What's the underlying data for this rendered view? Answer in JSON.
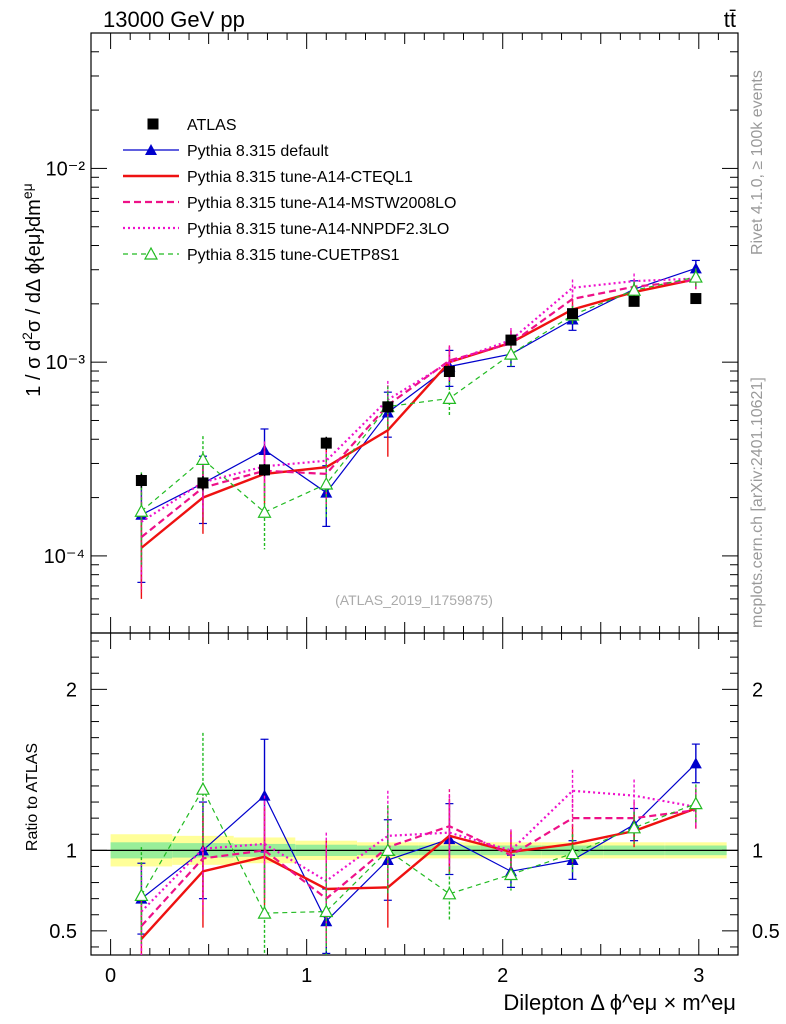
{
  "header": {
    "energy_label": "13000 GeV pp",
    "process_label": "tt̄"
  },
  "side": {
    "rivet_label": "Rivet 4.1.0, ≥ 100k events",
    "mcplots_label": "mcplots.cern.ch [arXiv:2401.10621]"
  },
  "watermark": "(ATLAS_2019_I1759875)",
  "chart_data": [
    {
      "type": "scatter",
      "panel": "main",
      "ylabel": "1 / σ  d²σ / dΔ ϕ{eμ}dm^eμ",
      "yscale": "log",
      "ylim": [
        4e-05,
        0.05
      ],
      "xlim": [
        -0.1,
        3.2
      ],
      "ytick_labels": [
        "10⁻⁴",
        "10⁻³",
        "10⁻²"
      ],
      "x": [
        0.157,
        0.471,
        0.785,
        1.1,
        1.414,
        1.728,
        2.042,
        2.356,
        2.67,
        2.985
      ],
      "series": [
        {
          "name": "ATLAS",
          "color": "#000000",
          "style": "data",
          "values": [
            0.000245,
            0.000238,
            0.000278,
            0.000382,
            0.000588,
            0.000895,
            0.0013,
            0.00178,
            0.00206,
            0.00213
          ],
          "err_up": [
            2e-05,
            2e-05,
            2e-05,
            3e-05,
            4e-05,
            6e-05,
            8e-05,
            0.0001,
            0.00012,
            0.00013
          ],
          "err_dn": [
            2e-05,
            2e-05,
            2e-05,
            3e-05,
            4e-05,
            6e-05,
            8e-05,
            0.0001,
            0.00012,
            0.00013
          ]
        },
        {
          "name": "Pythia 8.315 default",
          "color": "#0000cc",
          "style": "solid-thin-tri",
          "values": [
            0.000163,
            0.000237,
            0.000352,
            0.000212,
            0.00055,
            0.00095,
            0.0011,
            0.00166,
            0.00238,
            0.00305
          ],
          "err_up": [
            9e-05,
            9e-05,
            0.0001,
            8e-05,
            0.00015,
            0.0002,
            0.00015,
            0.0002,
            0.00025,
            0.0003
          ],
          "err_dn": [
            9e-05,
            9e-05,
            9e-05,
            7e-05,
            0.00014,
            0.0002,
            0.00015,
            0.0002,
            0.00025,
            0.0003
          ]
        },
        {
          "name": "Pythia 8.315 tune-A14-CTEQL1",
          "color": "#ee1111",
          "style": "solid-thick",
          "values": [
            0.00011,
            0.0002,
            0.000265,
            0.000287,
            0.000445,
            0.001,
            0.00126,
            0.00187,
            0.0023,
            0.00268
          ],
          "err_up": [
            8e-05,
            9e-05,
            0.0001,
            0.0001,
            0.00015,
            0.0002,
            0.0002,
            0.00025,
            0.00025,
            0.0003
          ],
          "err_dn": [
            5e-05,
            7e-05,
            8e-05,
            8e-05,
            0.00012,
            0.0002,
            0.0002,
            0.00025,
            0.00025,
            0.0003
          ]
        },
        {
          "name": "Pythia 8.315 tune-A14-MSTW2008LO",
          "color": "#ee1188",
          "style": "dashed-thick",
          "values": [
            0.000125,
            0.000225,
            0.000275,
            0.000265,
            0.0006,
            0.00102,
            0.00125,
            0.00212,
            0.00245,
            0.00265
          ],
          "err_up": [
            9e-05,
            9e-05,
            0.0001,
            0.0001,
            0.00016,
            0.0002,
            0.0002,
            0.00025,
            0.00025,
            0.0003
          ],
          "err_dn": [
            6e-05,
            7e-05,
            8e-05,
            8e-05,
            0.00013,
            0.0002,
            0.0002,
            0.00025,
            0.00025,
            0.0003
          ]
        },
        {
          "name": "Pythia 8.315 tune-A14-NNPDF2.3LO",
          "color": "#ee11cc",
          "style": "dotted",
          "values": [
            0.00015,
            0.00024,
            0.00029,
            0.00031,
            0.00064,
            0.001,
            0.0013,
            0.00242,
            0.00262,
            0.0027
          ],
          "err_up": [
            9e-05,
            9e-05,
            0.0001,
            0.0001,
            0.00016,
            0.0002,
            0.0002,
            0.00025,
            0.00025,
            0.0003
          ],
          "err_dn": [
            7e-05,
            7e-05,
            8e-05,
            8e-05,
            0.00014,
            0.0002,
            0.0002,
            0.00025,
            0.00025,
            0.0003
          ]
        },
        {
          "name": "Pythia 8.315 tune-CUETP8S1",
          "color": "#22bb22",
          "style": "dashed-thin-opentri",
          "values": [
            0.00017,
            0.000315,
            0.000168,
            0.000235,
            0.00059,
            0.00065,
            0.0011,
            0.00175,
            0.00235,
            0.00275
          ],
          "err_up": [
            0.0001,
            0.0001,
            7e-05,
            0.0001,
            0.00016,
            0.00014,
            0.00015,
            0.0002,
            0.00025,
            0.0003
          ],
          "err_dn": [
            8e-05,
            0.0001,
            6e-05,
            8e-05,
            0.00014,
            0.00012,
            0.00015,
            0.0002,
            0.00025,
            0.0003
          ]
        }
      ]
    },
    {
      "type": "scatter",
      "panel": "ratio",
      "ylabel": "Ratio to ATLAS",
      "xlabel": "Dilepton Δ ϕ^eμ × m^eμ",
      "ylim": [
        0.35,
        2.35
      ],
      "xlim": [
        -0.1,
        3.2
      ],
      "ytick_labels": [
        "0.5",
        "1",
        "2"
      ],
      "xtick_labels": [
        "0",
        "1",
        "2",
        "3"
      ],
      "band_stat_syst": [
        0.1,
        0.09,
        0.08,
        0.06,
        0.05,
        0.05,
        0.05,
        0.05,
        0.05,
        0.05
      ],
      "band_stat": [
        0.05,
        0.045,
        0.04,
        0.035,
        0.03,
        0.03,
        0.03,
        0.03,
        0.03,
        0.03
      ],
      "x": [
        0.157,
        0.471,
        0.785,
        1.1,
        1.414,
        1.728,
        2.042,
        2.356,
        2.67,
        2.985
      ],
      "series": [
        {
          "name": "Pythia 8.315 default",
          "color": "#0000cc",
          "style": "solid-thin-tri",
          "values": [
            0.7,
            1.0,
            1.34,
            0.56,
            0.94,
            1.07,
            0.87,
            0.94,
            1.16,
            1.54
          ],
          "err": [
            0.22,
            0.3,
            0.35,
            0.2,
            0.25,
            0.22,
            0.1,
            0.12,
            0.1,
            0.12
          ]
        },
        {
          "name": "Pythia 8.315 tune-A14-CTEQL1",
          "color": "#ee1111",
          "style": "solid-thick",
          "values": [
            0.45,
            0.87,
            0.96,
            0.76,
            0.77,
            1.09,
            0.99,
            1.04,
            1.12,
            1.26
          ],
          "err": [
            0.3,
            0.35,
            0.3,
            0.3,
            0.25,
            0.23,
            0.13,
            0.12,
            0.1,
            0.12
          ]
        },
        {
          "name": "Pythia 8.315 tune-A14-MSTW2008LO",
          "color": "#ee1188",
          "style": "dashed-thick",
          "values": [
            0.53,
            0.95,
            1.0,
            0.7,
            1.02,
            1.15,
            0.97,
            1.2,
            1.2,
            1.25
          ],
          "err": [
            0.3,
            0.35,
            0.3,
            0.3,
            0.25,
            0.23,
            0.13,
            0.12,
            0.1,
            0.12
          ]
        },
        {
          "name": "Pythia 8.315 tune-A14-NNPDF2.3LO",
          "color": "#ee11cc",
          "style": "dotted",
          "values": [
            0.62,
            1.01,
            1.04,
            0.81,
            1.09,
            1.11,
            1.0,
            1.37,
            1.34,
            1.27
          ],
          "err": [
            0.3,
            0.35,
            0.3,
            0.3,
            0.28,
            0.23,
            0.13,
            0.13,
            0.1,
            0.12
          ]
        },
        {
          "name": "Pythia 8.315 tune-CUETP8S1",
          "color": "#22bb22",
          "style": "dashed-thin-opentri",
          "values": [
            0.72,
            1.38,
            0.61,
            0.62,
            1.0,
            0.73,
            0.85,
            0.98,
            1.14,
            1.29
          ],
          "err": [
            0.3,
            0.35,
            0.3,
            0.3,
            0.28,
            0.17,
            0.1,
            0.12,
            0.1,
            0.12
          ]
        }
      ]
    }
  ]
}
